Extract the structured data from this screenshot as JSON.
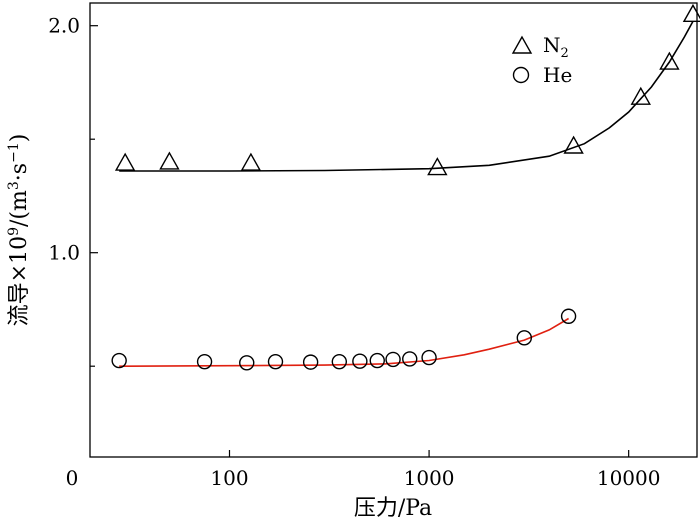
{
  "chart_data": {
    "type": "scatter",
    "xlabel": "压力/Pa",
    "ylabel": "流导×10⁹/(m³·s⁻¹)",
    "ylabel_parts": {
      "prefix": "流导×10",
      "exp1": "9",
      "mid": "/(m",
      "exp2": "3",
      "mid2": "·s",
      "exp3": "−1",
      "suffix": ")"
    },
    "xscale": "log",
    "xlim": [
      20,
      22000
    ],
    "ylim": [
      0.1,
      2.1
    ],
    "x_ticks": [
      {
        "value": 100,
        "label": "100"
      },
      {
        "value": 1000,
        "label": "1000"
      },
      {
        "value": 10000,
        "label": "10000"
      }
    ],
    "x_origin_label": "0",
    "y_ticks": [
      {
        "value": 1.0,
        "label": "1.0"
      },
      {
        "value": 2.0,
        "label": "2.0"
      }
    ],
    "y_minor_ticks": [
      0.5,
      1.5
    ],
    "grid": false,
    "legend_position": "top-right",
    "series": [
      {
        "name": "N",
        "name_sub": "2",
        "marker": "triangle",
        "color": "#000000",
        "fit_color": "#000000",
        "points": [
          {
            "x": 30,
            "y": 1.395
          },
          {
            "x": 50,
            "y": 1.4
          },
          {
            "x": 128,
            "y": 1.395
          },
          {
            "x": 1100,
            "y": 1.375
          },
          {
            "x": 5300,
            "y": 1.47
          },
          {
            "x": 11500,
            "y": 1.685
          },
          {
            "x": 16000,
            "y": 1.84
          },
          {
            "x": 21000,
            "y": 2.05
          }
        ],
        "fit": [
          {
            "x": 28,
            "y": 1.36
          },
          {
            "x": 100,
            "y": 1.36
          },
          {
            "x": 300,
            "y": 1.362
          },
          {
            "x": 1000,
            "y": 1.37
          },
          {
            "x": 2000,
            "y": 1.385
          },
          {
            "x": 4000,
            "y": 1.425
          },
          {
            "x": 6000,
            "y": 1.48
          },
          {
            "x": 8000,
            "y": 1.55
          },
          {
            "x": 10000,
            "y": 1.62
          },
          {
            "x": 13000,
            "y": 1.73
          },
          {
            "x": 16000,
            "y": 1.84
          },
          {
            "x": 19000,
            "y": 1.95
          },
          {
            "x": 21000,
            "y": 2.02
          }
        ]
      },
      {
        "name": "He",
        "name_sub": "",
        "marker": "circle",
        "color": "#000000",
        "fit_color": "#e02010",
        "points": [
          {
            "x": 28,
            "y": 0.525
          },
          {
            "x": 75,
            "y": 0.52
          },
          {
            "x": 122,
            "y": 0.515
          },
          {
            "x": 170,
            "y": 0.52
          },
          {
            "x": 255,
            "y": 0.518
          },
          {
            "x": 355,
            "y": 0.52
          },
          {
            "x": 450,
            "y": 0.522
          },
          {
            "x": 550,
            "y": 0.525
          },
          {
            "x": 660,
            "y": 0.53
          },
          {
            "x": 800,
            "y": 0.532
          },
          {
            "x": 1000,
            "y": 0.538
          },
          {
            "x": 3000,
            "y": 0.625
          },
          {
            "x": 5000,
            "y": 0.72
          }
        ],
        "fit": [
          {
            "x": 28,
            "y": 0.5
          },
          {
            "x": 100,
            "y": 0.502
          },
          {
            "x": 300,
            "y": 0.505
          },
          {
            "x": 600,
            "y": 0.51
          },
          {
            "x": 1000,
            "y": 0.525
          },
          {
            "x": 1500,
            "y": 0.55
          },
          {
            "x": 2000,
            "y": 0.575
          },
          {
            "x": 3000,
            "y": 0.615
          },
          {
            "x": 4000,
            "y": 0.66
          },
          {
            "x": 5000,
            "y": 0.71
          }
        ]
      }
    ]
  }
}
